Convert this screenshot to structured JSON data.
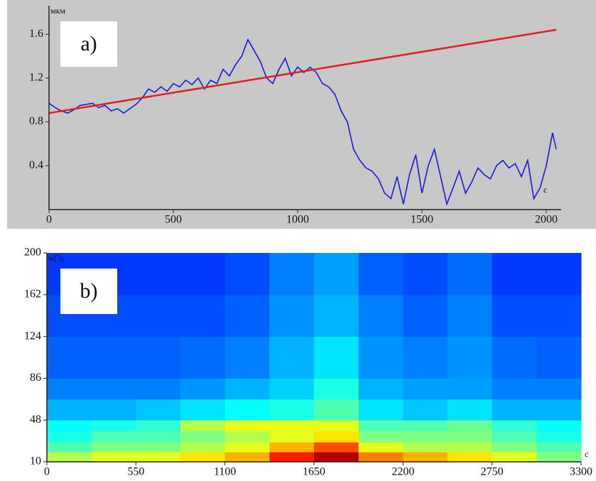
{
  "chart_data": [
    {
      "type": "line",
      "panel_label": "a)",
      "ylabel": "мкм",
      "xlabel": "с",
      "xlim": [
        0,
        2060
      ],
      "ylim": [
        0,
        1.86
      ],
      "xticks": [
        0,
        500,
        1000,
        1500,
        2000
      ],
      "yticks": [
        0.4,
        0.8,
        1.2,
        1.6
      ],
      "background": "#c8c8c8",
      "series": [
        {
          "color": "#1a1ae0",
          "x": [
            0,
            25,
            50,
            75,
            100,
            125,
            150,
            175,
            200,
            225,
            250,
            275,
            300,
            325,
            350,
            375,
            400,
            425,
            450,
            475,
            500,
            525,
            550,
            575,
            600,
            625,
            650,
            675,
            700,
            725,
            750,
            775,
            800,
            825,
            850,
            875,
            900,
            925,
            950,
            975,
            1000,
            1025,
            1050,
            1075,
            1100,
            1125,
            1150,
            1175,
            1200,
            1225,
            1250,
            1275,
            1300,
            1325,
            1350,
            1375,
            1400,
            1425,
            1450,
            1475,
            1500,
            1525,
            1550,
            1575,
            1600,
            1625,
            1650,
            1675,
            1700,
            1725,
            1750,
            1775,
            1800,
            1825,
            1850,
            1875,
            1900,
            1925,
            1950,
            1975,
            2000,
            2025,
            2040
          ],
          "values": [
            0.97,
            0.93,
            0.9,
            0.88,
            0.91,
            0.95,
            0.96,
            0.97,
            0.93,
            0.95,
            0.9,
            0.92,
            0.88,
            0.92,
            0.96,
            1.02,
            1.1,
            1.07,
            1.12,
            1.08,
            1.15,
            1.12,
            1.18,
            1.14,
            1.2,
            1.1,
            1.18,
            1.15,
            1.28,
            1.22,
            1.32,
            1.4,
            1.55,
            1.45,
            1.35,
            1.2,
            1.15,
            1.28,
            1.38,
            1.22,
            1.3,
            1.25,
            1.3,
            1.25,
            1.15,
            1.12,
            1.05,
            0.9,
            0.8,
            0.55,
            0.45,
            0.38,
            0.35,
            0.28,
            0.15,
            0.1,
            0.3,
            0.05,
            0.32,
            0.5,
            0.15,
            0.4,
            0.55,
            0.3,
            0.05,
            0.2,
            0.35,
            0.15,
            0.25,
            0.38,
            0.32,
            0.28,
            0.4,
            0.45,
            0.38,
            0.42,
            0.3,
            0.45,
            0.1,
            0.2,
            0.4,
            0.7,
            0.55
          ]
        },
        {
          "color": "#e02020",
          "x": [
            0,
            2040
          ],
          "values": [
            0.88,
            1.64
          ]
        }
      ]
    },
    {
      "type": "heatmap",
      "panel_label": "b)",
      "ylabel": "мГц",
      "xlabel": "с",
      "xlim": [
        0,
        3300
      ],
      "ylim": [
        10,
        200
      ],
      "xticks": [
        0,
        550,
        1100,
        1650,
        2200,
        2750,
        3300
      ],
      "yticks": [
        10,
        48,
        86,
        124,
        162,
        200
      ],
      "colormap": "jet",
      "clim": [
        0,
        1
      ],
      "xbins": [
        0,
        275,
        550,
        825,
        1100,
        1375,
        1650,
        1925,
        2200,
        2475,
        2750,
        3025,
        3300
      ],
      "ybins": [
        10,
        19,
        28,
        38,
        48,
        67,
        86,
        124,
        162,
        200
      ],
      "values": [
        [
          0.55,
          0.6,
          0.6,
          0.65,
          0.7,
          0.85,
          0.95,
          0.75,
          0.7,
          0.65,
          0.6,
          0.5
        ],
        [
          0.45,
          0.5,
          0.5,
          0.55,
          0.6,
          0.7,
          0.8,
          0.6,
          0.55,
          0.55,
          0.5,
          0.45
        ],
        [
          0.4,
          0.45,
          0.45,
          0.5,
          0.55,
          0.6,
          0.65,
          0.5,
          0.5,
          0.5,
          0.45,
          0.4
        ],
        [
          0.38,
          0.4,
          0.42,
          0.55,
          0.6,
          0.6,
          0.6,
          0.45,
          0.45,
          0.48,
          0.42,
          0.38
        ],
        [
          0.3,
          0.3,
          0.32,
          0.35,
          0.38,
          0.4,
          0.45,
          0.35,
          0.32,
          0.35,
          0.3,
          0.3
        ],
        [
          0.25,
          0.25,
          0.25,
          0.27,
          0.3,
          0.33,
          0.4,
          0.3,
          0.28,
          0.28,
          0.25,
          0.25
        ],
        [
          0.22,
          0.22,
          0.22,
          0.23,
          0.25,
          0.3,
          0.35,
          0.27,
          0.25,
          0.27,
          0.23,
          0.22
        ],
        [
          0.2,
          0.2,
          0.2,
          0.2,
          0.22,
          0.27,
          0.3,
          0.25,
          0.22,
          0.25,
          0.2,
          0.2
        ],
        [
          0.18,
          0.18,
          0.18,
          0.18,
          0.2,
          0.25,
          0.28,
          0.22,
          0.2,
          0.23,
          0.18,
          0.18
        ]
      ]
    }
  ]
}
